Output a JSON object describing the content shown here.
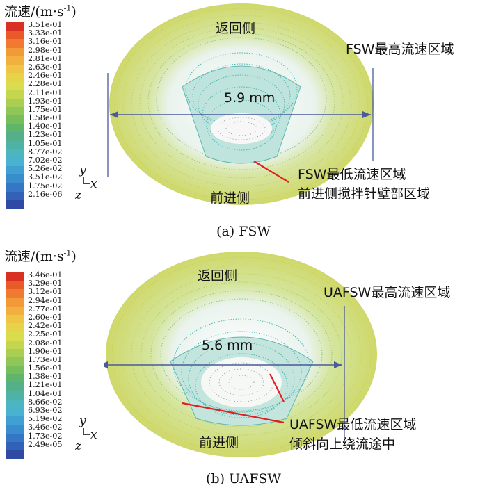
{
  "legend_title": "流速/(m·s",
  "legend_unit_sup": "-1",
  "legend_title_close": ")",
  "axes": {
    "y": "y",
    "x": "x",
    "z": "z"
  },
  "colorbar_colors": [
    "#d93024",
    "#ea5a28",
    "#f07a2f",
    "#f29a38",
    "#f2b040",
    "#efc545",
    "#e6d34a",
    "#d9dc4c",
    "#c4d64e",
    "#a8cf52",
    "#8fc657",
    "#76bd5c",
    "#5fb56a",
    "#54b08a",
    "#4db3a6",
    "#4cb5bf",
    "#48b2d0",
    "#3fa0d2",
    "#3a8dcd",
    "#3577c6",
    "#3261b8",
    "#2f4aa5"
  ],
  "panels": [
    {
      "caption": "(a) FSW",
      "ticks": [
        "3.51e-01",
        "3.33e-01",
        "3.16e-01",
        "2.98e-01",
        "2.81e-01",
        "2.63e-01",
        "2.46e-01",
        "2.28e-01",
        "2.11e-01",
        "1.93e-01",
        "1.75e-01",
        "1.58e-01",
        "1.40e-01",
        "1.23e-01",
        "1.05e-01",
        "8.77e-02",
        "7.02e-02",
        "5.26e-02",
        "3.51e-02",
        "1.75e-02",
        "2.16e-06"
      ],
      "label_top": "返回侧",
      "label_bottom": "前进侧",
      "label_max": "FSW最高流速区域",
      "label_min_1": "FSW最低流速区域",
      "label_min_2": "前进侧搅拌针壁部区域",
      "dimension": "5.9 mm"
    },
    {
      "caption": "(b) UAFSW",
      "ticks": [
        "3.46e-01",
        "3.29e-01",
        "3.12e-01",
        "2.94e-01",
        "2.77e-01",
        "2.60e-01",
        "2.42e-01",
        "2.25e-01",
        "2.08e-01",
        "1.90e-01",
        "1.73e-01",
        "1.56e-01",
        "1.38e-01",
        "1.21e-01",
        "1.04e-01",
        "8.66e-02",
        "6.93e-02",
        "5.19e-02",
        "3.46e-02",
        "1.73e-02",
        "2.49e-05"
      ],
      "label_top": "返回侧",
      "label_bottom": "前进侧",
      "label_max": "UAFSW最高流速区域",
      "label_min_1": "UAFSW最低流速区域",
      "label_min_2": "倾斜向上绕流途中",
      "dimension": "5.6 mm"
    }
  ]
}
